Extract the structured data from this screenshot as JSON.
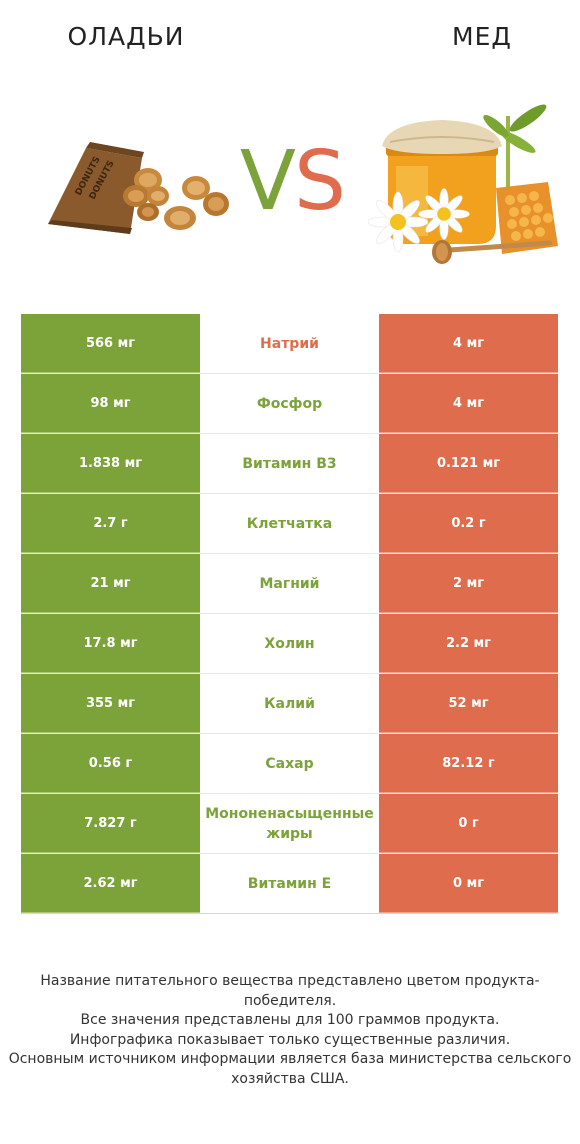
{
  "header": {
    "left_title": "ОЛАДЬИ",
    "right_title": "МЕД",
    "vs_v": "V",
    "vs_s": "S"
  },
  "colors": {
    "left": "#7ba339",
    "right": "#e06c4e"
  },
  "rows": [
    {
      "left": "566 мг",
      "name": "Натрий",
      "right": "4 мг",
      "winner": "right"
    },
    {
      "left": "98 мг",
      "name": "Фосфор",
      "right": "4 мг",
      "winner": "left"
    },
    {
      "left": "1.838 мг",
      "name": "Витамин B3",
      "right": "0.121 мг",
      "winner": "left"
    },
    {
      "left": "2.7 г",
      "name": "Клетчатка",
      "right": "0.2 г",
      "winner": "left"
    },
    {
      "left": "21 мг",
      "name": "Магний",
      "right": "2 мг",
      "winner": "left"
    },
    {
      "left": "17.8 мг",
      "name": "Холин",
      "right": "2.2 мг",
      "winner": "left"
    },
    {
      "left": "355 мг",
      "name": "Калий",
      "right": "52 мг",
      "winner": "left"
    },
    {
      "left": "0.56 г",
      "name": "Сахар",
      "right": "82.12 г",
      "winner": "left"
    },
    {
      "left": "7.827 г",
      "name": "Мононенасыщенные жиры",
      "right": "0 г",
      "winner": "left"
    },
    {
      "left": "2.62 мг",
      "name": "Витамин E",
      "right": "0 мг",
      "winner": "left"
    }
  ],
  "footer": {
    "line1": "Название питательного вещества представлено цветом продукта-победителя.",
    "line2": "Все значения представлены для 100 граммов продукта.",
    "line3": "Инфографика показывает только существенные различия.",
    "line4": "Основным источником информации является база министерства сельского хозяйства США."
  }
}
